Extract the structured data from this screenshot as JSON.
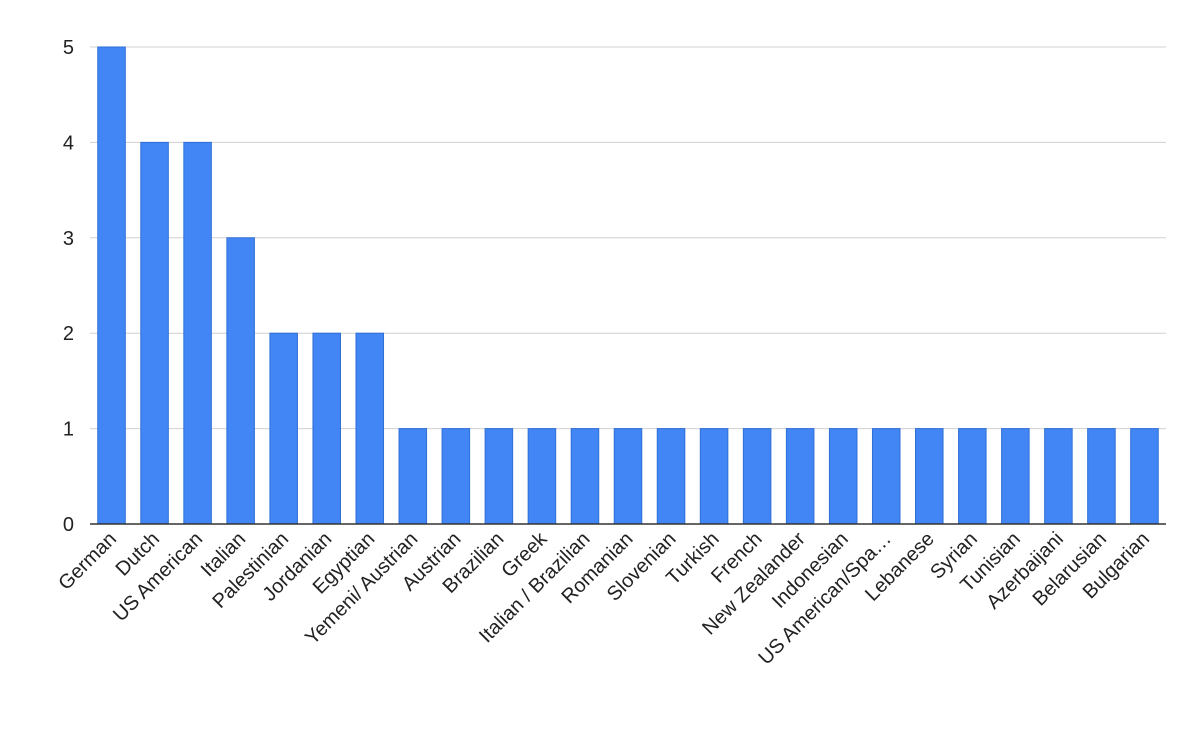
{
  "chart_data": {
    "type": "bar",
    "categories": [
      "German",
      "Dutch",
      "US American",
      "Italian",
      "Palestinian",
      "Jordanian",
      "Egyptian",
      "Yemeni/ Austrian",
      "Austrian",
      "Brazilian",
      "Greek",
      "Italian / Brazilian",
      "Romanian",
      "Slovenian",
      "Turkish",
      "French",
      "New Zealander",
      "Indonesian",
      "US American/Spa…",
      "Lebanese",
      "Syrian",
      "Tunisian",
      "Azerbaijani",
      "Belarusian",
      "Bulgarian"
    ],
    "values": [
      5,
      4,
      4,
      3,
      2,
      2,
      2,
      1,
      1,
      1,
      1,
      1,
      1,
      1,
      1,
      1,
      1,
      1,
      1,
      1,
      1,
      1,
      1,
      1,
      1
    ],
    "title": "",
    "xlabel": "",
    "ylabel": "",
    "ylim": [
      0,
      5
    ],
    "yticks": [
      "0",
      "1",
      "2",
      "3",
      "4",
      "5"
    ],
    "grid": true,
    "bar_color": "#4285f4",
    "bar_edge_color": "#2f6fd6"
  }
}
